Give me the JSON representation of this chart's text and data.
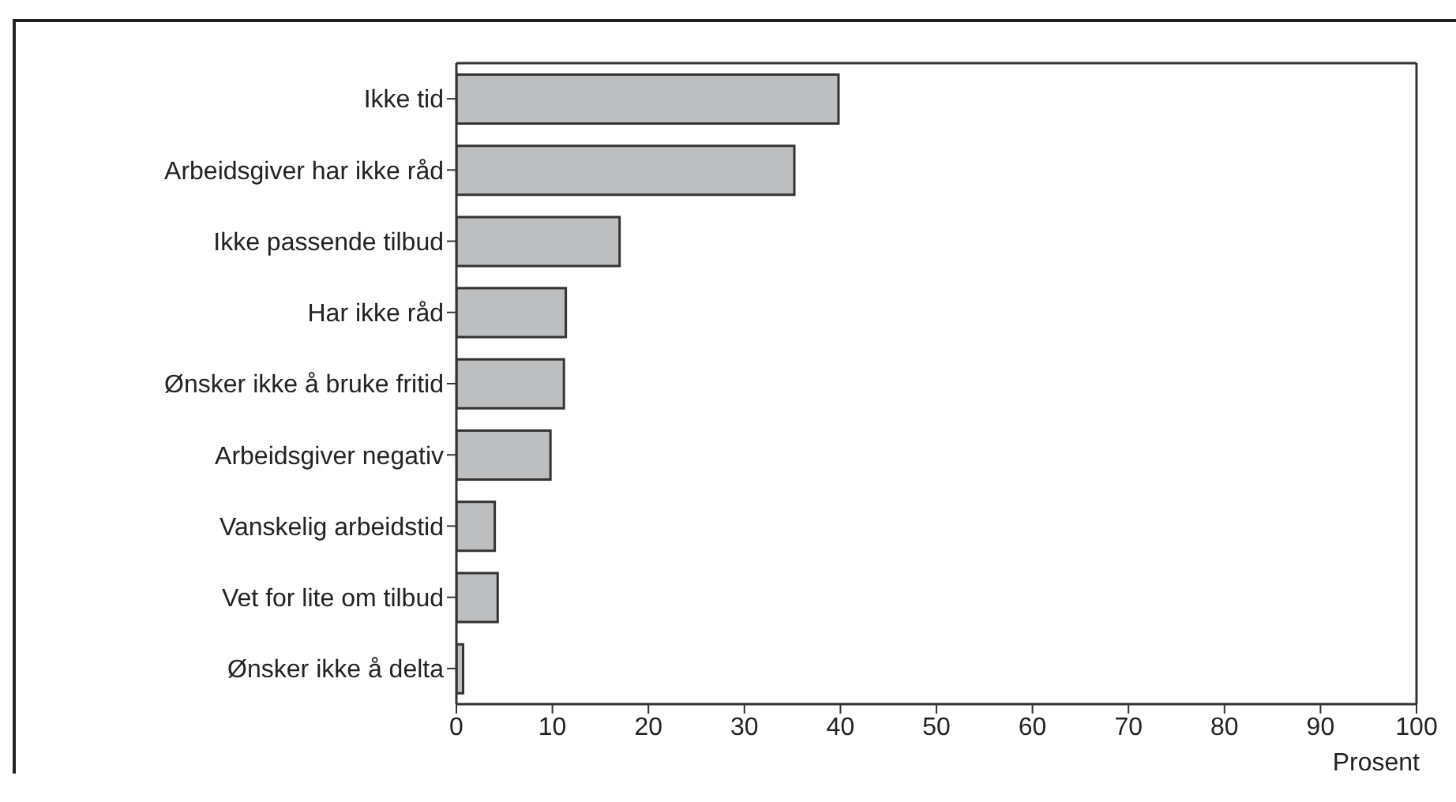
{
  "chart_data": {
    "type": "bar",
    "orientation": "horizontal",
    "xlabel": "Prosent",
    "categories": [
      "Ikke tid",
      "Arbeidsgiver har ikke råd",
      "Ikke passende tilbud",
      "Har ikke råd",
      "Ønsker ikke å bruke fritid",
      "Arbeidsgiver negativ",
      "Vanskelig arbeidstid",
      "Vet for lite om tilbud",
      "Ønsker ikke å delta"
    ],
    "values": [
      39.8,
      35.2,
      17.0,
      11.4,
      11.2,
      9.8,
      4.0,
      4.3,
      0.7
    ],
    "color": "#bcbec0",
    "xlim": [
      0,
      100
    ],
    "xticks": [
      0,
      10,
      20,
      30,
      40,
      50,
      60,
      70,
      80,
      90,
      100
    ],
    "grid": false
  }
}
